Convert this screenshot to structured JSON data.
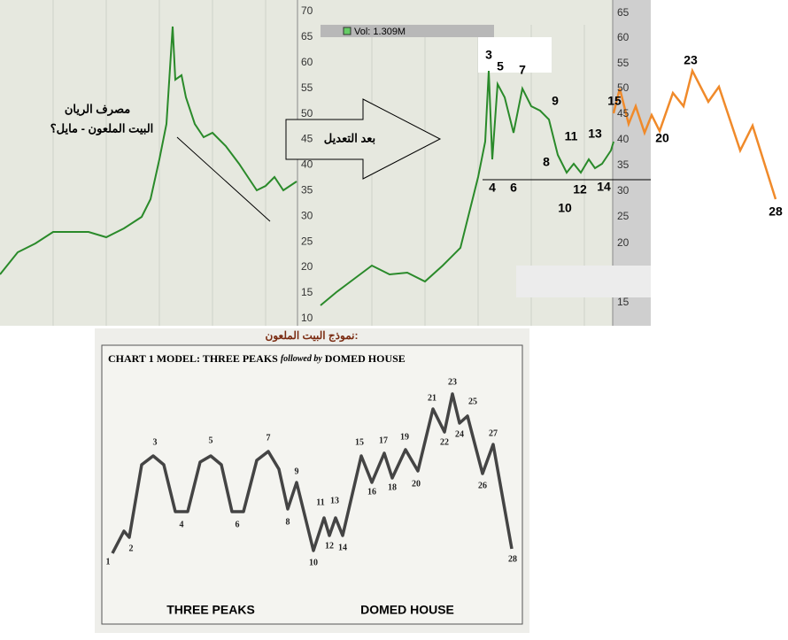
{
  "top": {
    "left_title": "مصرف الريان",
    "left_subtitle": "البيت الملعون - مايل؟",
    "arrow_label": "بعد التعديل",
    "volume_label": "Vol: 1.309M",
    "left_ticks": [
      70,
      65,
      60,
      55,
      50,
      45,
      40,
      35,
      30,
      25,
      20,
      15,
      10
    ],
    "right_ticks": [
      65,
      60,
      55,
      50,
      45,
      40,
      35,
      30,
      25,
      20,
      15
    ],
    "point_labels": [
      "3",
      "5",
      "7",
      "9",
      "15",
      "11",
      "13",
      "8",
      "4",
      "6",
      "12",
      "14",
      "10"
    ],
    "projection_labels": [
      "23",
      "20",
      "28"
    ]
  },
  "model": {
    "heading": "نموذج البيت الملعون:",
    "title": "CHART 1   MODEL: THREE PEAKS",
    "title_italic": "followed by",
    "title_end": "DOMED HOUSE",
    "point_labels": [
      "1",
      "2",
      "3",
      "4",
      "5",
      "6",
      "7",
      "8",
      "9",
      "10",
      "11",
      "12",
      "13",
      "14",
      "15",
      "16",
      "17",
      "18",
      "19",
      "20",
      "21",
      "22",
      "23",
      "24",
      "25",
      "26",
      "27",
      "28"
    ],
    "left_caption": "THREE PEAKS",
    "right_caption": "DOMED HOUSE"
  }
}
